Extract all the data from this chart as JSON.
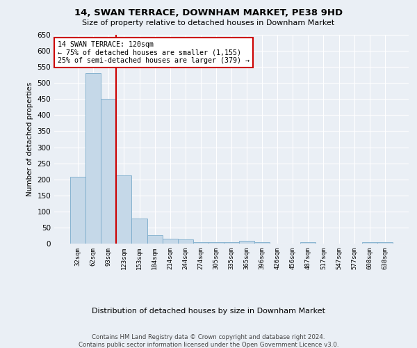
{
  "title": "14, SWAN TERRACE, DOWNHAM MARKET, PE38 9HD",
  "subtitle": "Size of property relative to detached houses in Downham Market",
  "xlabel": "Distribution of detached houses by size in Downham Market",
  "ylabel": "Number of detached properties",
  "footer_line1": "Contains HM Land Registry data © Crown copyright and database right 2024.",
  "footer_line2": "Contains public sector information licensed under the Open Government Licence v3.0.",
  "categories": [
    "32sqm",
    "62sqm",
    "93sqm",
    "123sqm",
    "153sqm",
    "184sqm",
    "214sqm",
    "244sqm",
    "274sqm",
    "305sqm",
    "335sqm",
    "365sqm",
    "396sqm",
    "426sqm",
    "456sqm",
    "487sqm",
    "517sqm",
    "547sqm",
    "577sqm",
    "608sqm",
    "638sqm"
  ],
  "values": [
    207,
    530,
    450,
    212,
    78,
    26,
    15,
    12,
    5,
    5,
    5,
    8,
    5,
    0,
    0,
    5,
    0,
    0,
    0,
    5,
    5
  ],
  "bar_color": "#c5d8e8",
  "bar_edge_color": "#7aabcb",
  "vline_color": "#cc0000",
  "annotation_title": "14 SWAN TERRACE: 120sqm",
  "annotation_line1": "← 75% of detached houses are smaller (1,155)",
  "annotation_line2": "25% of semi-detached houses are larger (379) →",
  "annotation_box_color": "#cc0000",
  "ylim": [
    0,
    650
  ],
  "yticks": [
    0,
    50,
    100,
    150,
    200,
    250,
    300,
    350,
    400,
    450,
    500,
    550,
    600,
    650
  ],
  "background_color": "#eaeff5",
  "axes_background_color": "#eaeff5"
}
